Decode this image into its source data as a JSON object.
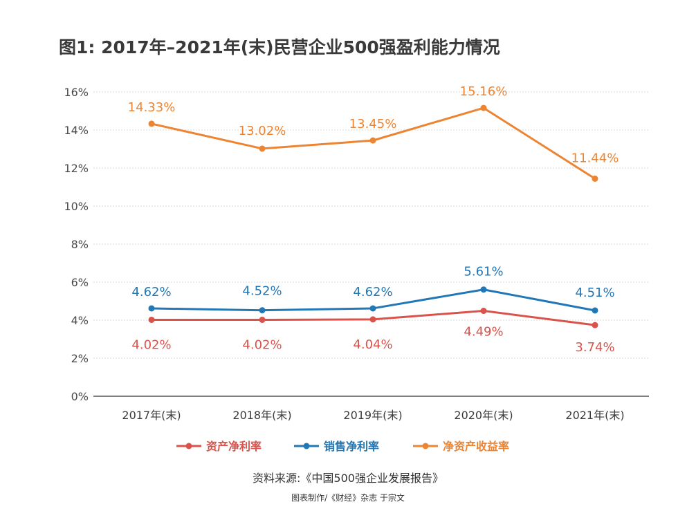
{
  "title": "图1: 2017年–2021年(末)民营企业500强盈利能力情况",
  "source": "资料来源:《中国500强企业发展报告》",
  "credit": "图表制作/《财经》杂志 于宗文",
  "colors": {
    "asset": "#d9534a",
    "sales": "#2277b6",
    "equity": "#ec8432",
    "grid": "#d8d8d8",
    "axis": "#555555"
  },
  "chart_data": {
    "type": "line",
    "categories": [
      "2017年(末)",
      "2018年(末)",
      "2019年(末)",
      "2020年(末)",
      "2021年(末)"
    ],
    "ylim": [
      0,
      16
    ],
    "yticks": [
      0,
      2,
      4,
      6,
      8,
      10,
      12,
      14,
      16
    ],
    "ytick_labels": [
      "0%",
      "2%",
      "4%",
      "6%",
      "8%",
      "10%",
      "12%",
      "14%",
      "16%"
    ],
    "grid": true,
    "legend_position": "bottom",
    "series": [
      {
        "key": "asset",
        "name": "资产净利率",
        "values": [
          4.02,
          4.02,
          4.04,
          4.49,
          3.74
        ],
        "labels": [
          "4.02%",
          "4.02%",
          "4.04%",
          "4.49%",
          "3.74%"
        ],
        "label_position": "below"
      },
      {
        "key": "sales",
        "name": "销售净利率",
        "values": [
          4.62,
          4.52,
          4.62,
          5.61,
          4.51
        ],
        "labels": [
          "4.62%",
          "4.52%",
          "4.62%",
          "5.61%",
          "4.51%"
        ],
        "label_position": "above"
      },
      {
        "key": "equity",
        "name": "净资产收益率",
        "values": [
          14.33,
          13.02,
          13.45,
          15.16,
          11.44
        ],
        "labels": [
          "14.33%",
          "13.02%",
          "13.45%",
          "15.16%",
          "11.44%"
        ],
        "label_position": "above"
      }
    ]
  }
}
